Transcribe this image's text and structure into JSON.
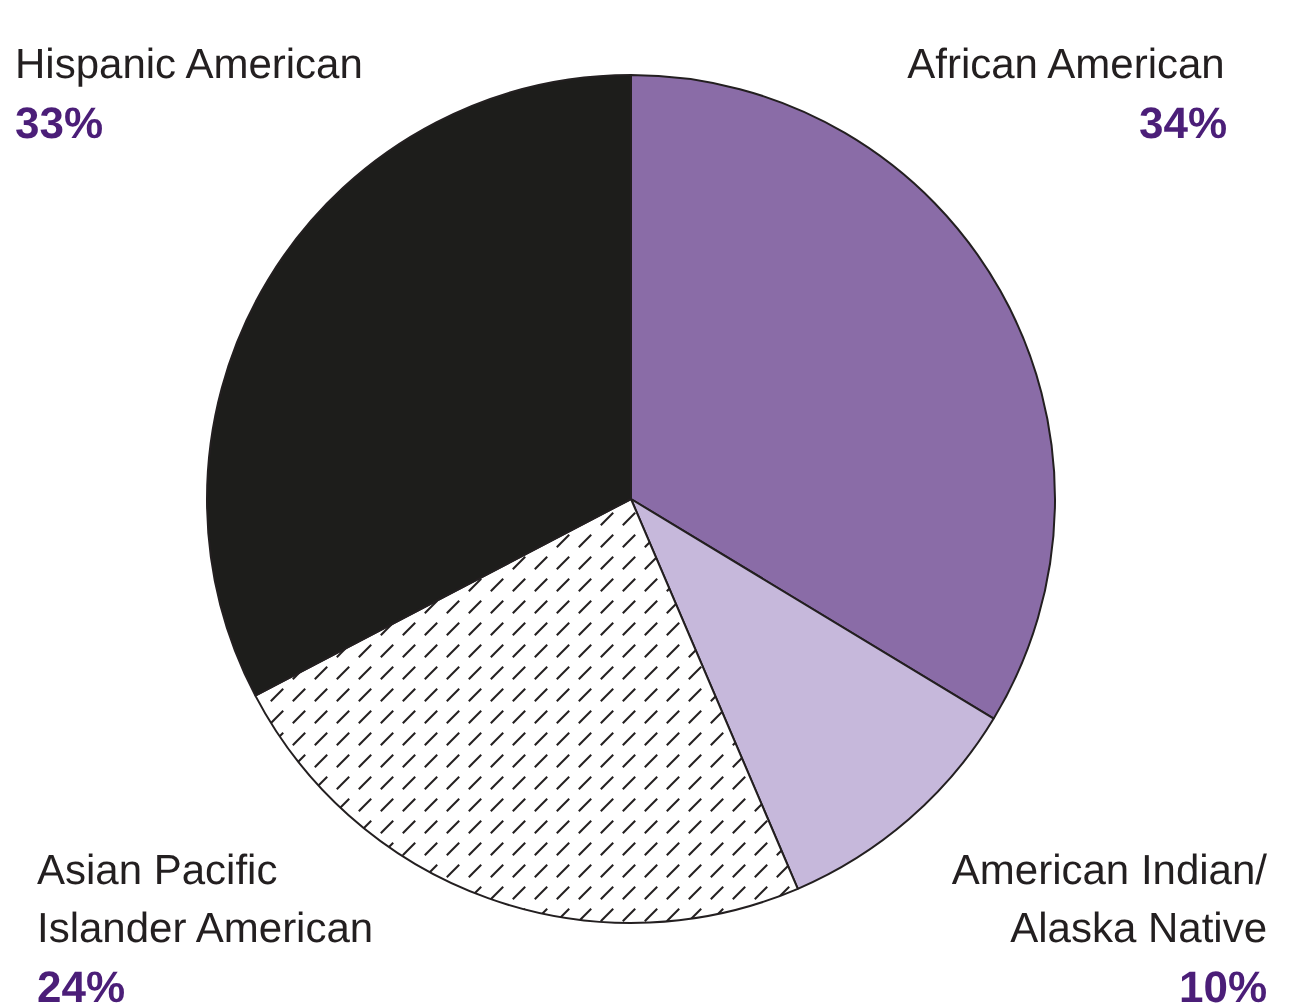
{
  "chart_data": {
    "type": "pie",
    "categories": [
      "African American",
      "American Indian/\nAlaska Native",
      "Asian Pacific\nIslander American",
      "Hispanic American"
    ],
    "values": [
      34,
      10,
      24,
      33
    ],
    "colors": [
      "#8a6ca7",
      "#c6b8db",
      "#ffffff",
      "#1d1d1b"
    ],
    "value_labels": [
      "34%",
      "10%",
      "24%",
      "33%"
    ]
  }
}
